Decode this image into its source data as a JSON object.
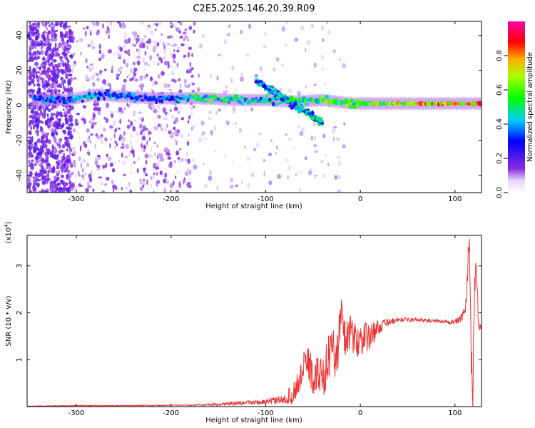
{
  "page_title": "C2E5.2025.146.20.39.R09",
  "colorbar": {
    "label": "Normalized spectral amplitude",
    "ticks": [
      {
        "v": 0.0,
        "label": "0.0"
      },
      {
        "v": 0.2,
        "label": "0.2"
      },
      {
        "v": 0.4,
        "label": "0.4"
      },
      {
        "v": 0.6,
        "label": "0.6"
      },
      {
        "v": 0.8,
        "label": "0.8"
      }
    ]
  },
  "chart_data": [
    {
      "type": "heatmap",
      "xlabel": "Height of straight line (km)",
      "ylabel": "Frequency (Hz)",
      "xlim": [
        -352,
        128
      ],
      "ylim": [
        -50,
        48
      ],
      "xticks": [
        -300,
        -200,
        -100,
        0,
        100
      ],
      "yticks": [
        -40,
        -20,
        0,
        20,
        40
      ],
      "colorscale": "rainbow (white at 0, purple-blue-cyan-green-yellow-red-magenta up to 1)",
      "ridge": [
        {
          "x": -310,
          "y": 3,
          "amp": 0.4
        },
        {
          "x": -280,
          "y": 6,
          "amp": 0.45
        },
        {
          "x": -250,
          "y": 5,
          "amp": 0.4
        },
        {
          "x": -220,
          "y": 4,
          "amp": 0.35
        },
        {
          "x": -170,
          "y": 4,
          "amp": 0.6
        },
        {
          "x": -130,
          "y": 3,
          "amp": 0.55
        },
        {
          "x": -100,
          "y": 3,
          "amp": 0.5
        },
        {
          "x": -70,
          "y": 2,
          "amp": 0.55
        },
        {
          "x": -40,
          "y": 3,
          "amp": 0.6
        },
        {
          "x": -10,
          "y": 1,
          "amp": 0.65
        },
        {
          "x": 20,
          "y": 1,
          "amp": 0.7
        },
        {
          "x": 60,
          "y": 1,
          "amp": 0.8
        },
        {
          "x": 100,
          "y": 1,
          "amp": 0.85
        },
        {
          "x": 125,
          "y": 1,
          "amp": 0.9
        }
      ]
    },
    {
      "type": "line",
      "xlabel": "Height of straight line (km)",
      "ylabel": "SNR (10 * v/v)",
      "y_multiplier_label": "(x10",
      "y_multiplier_exp": "4",
      "y_multiplier_close": ")",
      "xlim": [
        -352,
        128
      ],
      "ylim": [
        0,
        3.65
      ],
      "xticks": [
        -300,
        -200,
        -100,
        0,
        100
      ],
      "yticks": [
        1,
        2,
        3
      ],
      "color": "#ee3333",
      "series": [
        {
          "x": [
            -352,
            -300,
            -250,
            -200,
            -180,
            -150,
            -120,
            -100,
            -80,
            -70,
            -60,
            -55,
            -50,
            -45,
            -40,
            -35,
            -30,
            -25,
            -20,
            -15,
            -10,
            -5,
            0,
            10,
            20,
            30,
            40,
            60,
            80,
            100,
            108,
            112,
            115,
            117,
            119,
            120,
            122,
            125,
            128
          ],
          "y": [
            0.01,
            0.02,
            0.02,
            0.03,
            0.03,
            0.05,
            0.08,
            0.1,
            0.15,
            0.3,
            0.8,
            1.0,
            0.55,
            0.7,
            0.6,
            0.95,
            1.25,
            1.1,
            1.9,
            1.4,
            1.7,
            1.35,
            1.45,
            1.5,
            1.7,
            1.8,
            1.85,
            1.85,
            1.82,
            1.8,
            1.9,
            2.2,
            3.65,
            1.2,
            0.15,
            2.1,
            3.2,
            1.7,
            1.7
          ],
          "noise": [
            0.005,
            0.01,
            0.01,
            0.01,
            0.01,
            0.03,
            0.05,
            0.05,
            0.1,
            0.25,
            0.35,
            0.4,
            0.4,
            0.45,
            0.45,
            0.5,
            0.5,
            0.55,
            0.55,
            0.5,
            0.45,
            0.4,
            0.35,
            0.3,
            0.15,
            0.08,
            0.05,
            0.04,
            0.04,
            0.05,
            0.1,
            0.2,
            0.3,
            0.4,
            0.4,
            0.4,
            0.3,
            0.1,
            0.05
          ]
        }
      ]
    }
  ]
}
